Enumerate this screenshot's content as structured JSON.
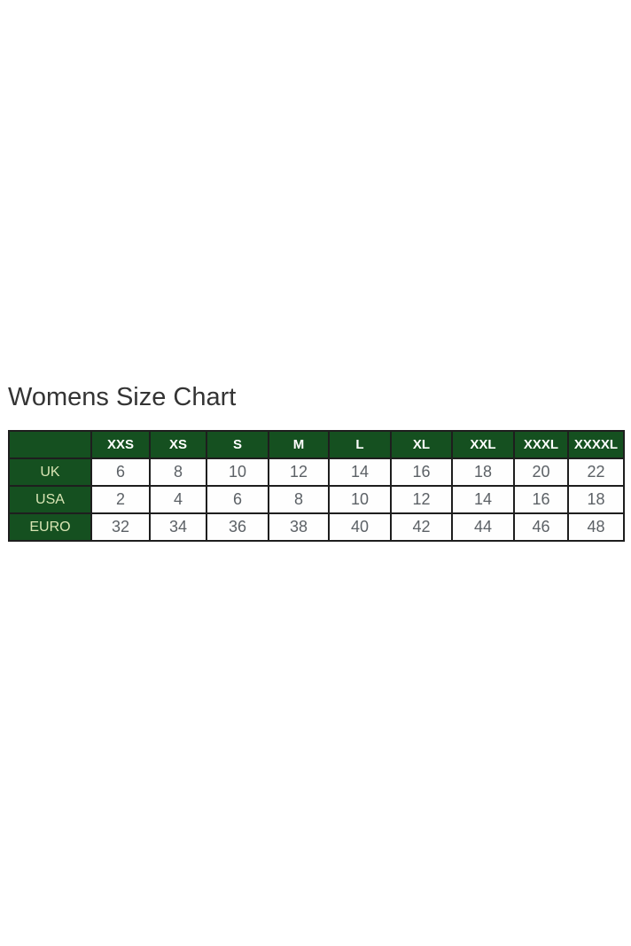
{
  "title": "Womens Size Chart",
  "chart_data": {
    "type": "table",
    "title": "Womens Size Chart",
    "columns": [
      "",
      "XXS",
      "XS",
      "S",
      "M",
      "L",
      "XL",
      "XXL",
      "XXXL",
      "XXXXL"
    ],
    "rows": [
      {
        "label": "UK",
        "values": [
          6,
          8,
          10,
          12,
          14,
          16,
          18,
          20,
          22
        ]
      },
      {
        "label": "USA",
        "values": [
          2,
          4,
          6,
          8,
          10,
          12,
          14,
          16,
          18
        ]
      },
      {
        "label": "EURO",
        "values": [
          32,
          34,
          36,
          38,
          40,
          42,
          44,
          46,
          48
        ]
      }
    ],
    "colors": {
      "header_bg": "#155020",
      "header_text": "#ffffff",
      "row_label_text": "#d9e5b4",
      "cell_text": "#5c6166",
      "border": "#1e1e1e",
      "cell_bg": "#fefefe",
      "title_color": "#343434",
      "page_bg": "#ffffff"
    }
  }
}
